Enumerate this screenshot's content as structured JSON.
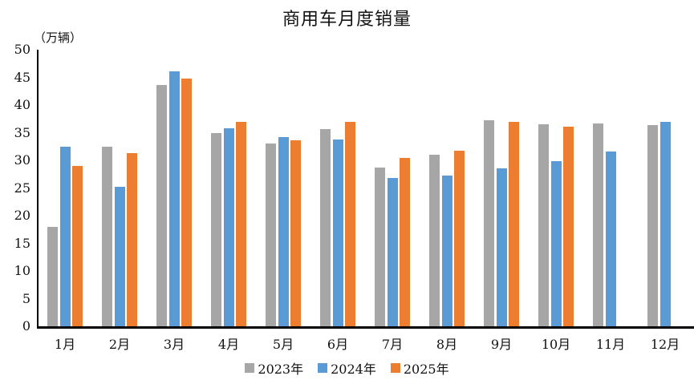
{
  "chart_data": {
    "type": "bar",
    "title": "商用车月度销量",
    "unit_label": "（万辆）",
    "categories": [
      "1月",
      "2月",
      "3月",
      "4月",
      "5月",
      "6月",
      "7月",
      "8月",
      "9月",
      "10月",
      "11月",
      "12月"
    ],
    "series": [
      {
        "name": "2023年",
        "color": "#a6a6a6",
        "values": [
          18.0,
          32.5,
          43.6,
          35.0,
          33.0,
          35.6,
          28.7,
          31.0,
          37.3,
          36.6,
          36.7,
          36.4
        ]
      },
      {
        "name": "2024年",
        "color": "#5b9bd5",
        "values": [
          32.5,
          25.2,
          46.1,
          35.8,
          34.2,
          33.8,
          26.8,
          27.2,
          28.5,
          29.9,
          31.6,
          37.0
        ]
      },
      {
        "name": "2025年",
        "color": "#ed7d31",
        "values": [
          29.0,
          31.3,
          44.8,
          37.0,
          33.6,
          37.0,
          30.5,
          31.7,
          36.9,
          36.1,
          null,
          null
        ]
      }
    ],
    "xlabel": "",
    "ylabel": "",
    "ylim": [
      0,
      50
    ],
    "ytick_step": 5,
    "grid": false,
    "legend_position": "bottom",
    "axis_color": "#000000",
    "text_color": "#111111"
  }
}
